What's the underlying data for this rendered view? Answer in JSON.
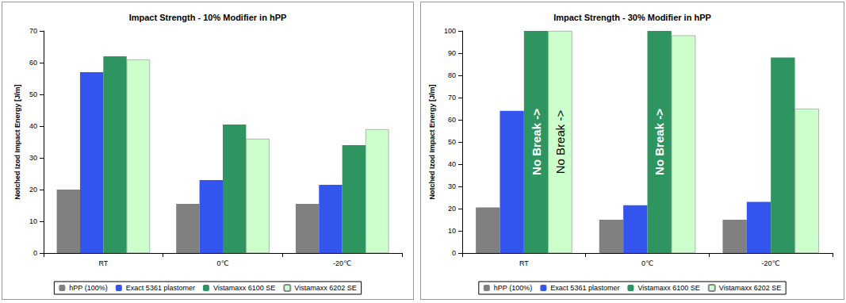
{
  "chart_data": [
    {
      "type": "bar",
      "title": "Impact Strength - 10% Modifier in hPP",
      "y_label": "Notched Izod Impact Energy [J/m]",
      "categories": [
        "RT",
        "0℃",
        "-20℃"
      ],
      "series": [
        {
          "name": "hPP (100%)",
          "color": "#808080",
          "values": [
            20,
            15.5,
            15.5
          ]
        },
        {
          "name": "Exact 5361 plastomer",
          "color": "#3355ee",
          "values": [
            57,
            23,
            21.5
          ]
        },
        {
          "name": "Vistamaxx 6100 SE",
          "color": "#2e9460",
          "values": [
            62,
            40.5,
            34
          ]
        },
        {
          "name": "Vistamaxx 6202 SE",
          "color": "#ccffcc",
          "values": [
            61,
            36,
            39
          ]
        }
      ],
      "ylim": [
        0,
        70
      ],
      "yticks": [
        0,
        10,
        20,
        30,
        40,
        50,
        60,
        70
      ],
      "grid": false,
      "legend": "bottom"
    },
    {
      "type": "bar",
      "title": "Impact Strength - 30% Modifier in hPP",
      "y_label": "Notched Izod Impact Energy [J/m]",
      "categories": [
        "RT",
        "0℃",
        "-20℃"
      ],
      "series": [
        {
          "name": "hPP (100%)",
          "color": "#808080",
          "values": [
            20.5,
            15,
            15
          ]
        },
        {
          "name": "Exact 5361 plastomer",
          "color": "#3355ee",
          "values": [
            64,
            21.5,
            23
          ]
        },
        {
          "name": "Vistamaxx 6100 SE",
          "color": "#2e9460",
          "values": [
            100,
            100,
            88
          ],
          "value_labels": [
            "No Break ->",
            "No Break ->",
            null
          ]
        },
        {
          "name": "Vistamaxx 6202 SE",
          "color": "#ccffcc",
          "values": [
            100,
            98,
            65
          ],
          "value_labels": [
            "No Break ->",
            null,
            null
          ]
        }
      ],
      "ylim": [
        0,
        100
      ],
      "yticks": [
        0,
        10,
        20,
        30,
        40,
        50,
        60,
        70,
        80,
        90,
        100
      ],
      "grid": false,
      "legend": "bottom"
    }
  ]
}
